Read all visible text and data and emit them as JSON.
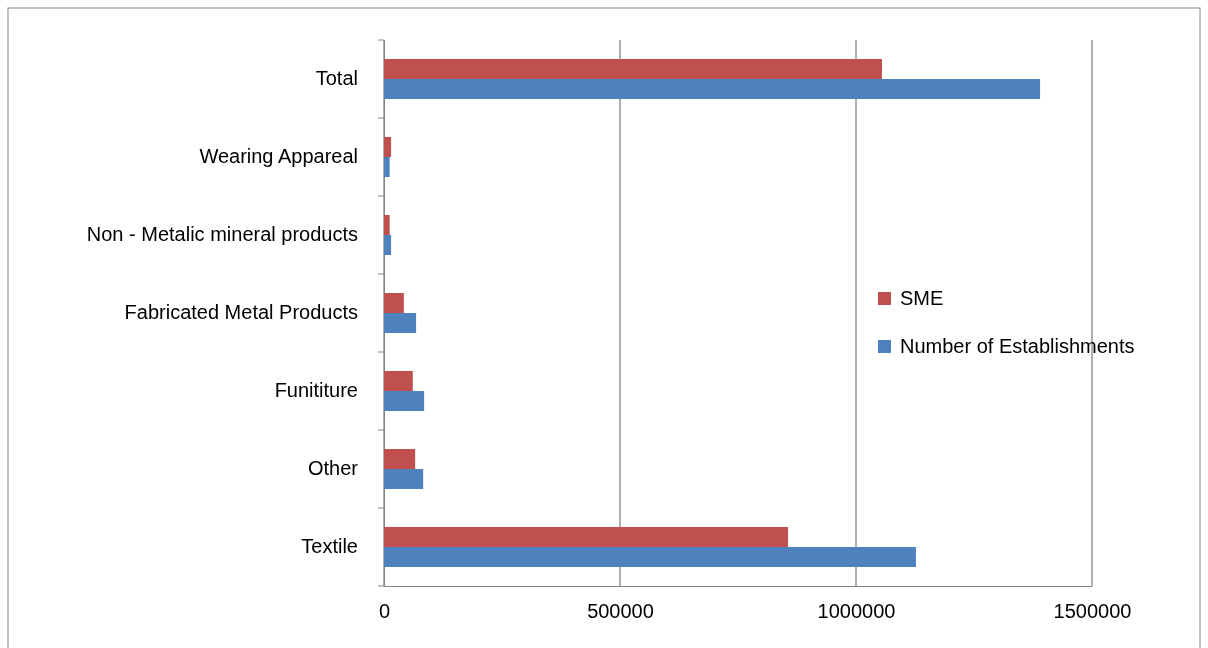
{
  "chart_data": {
    "type": "bar",
    "orientation": "horizontal",
    "categories": [
      "Total",
      "Wearing Appareal",
      "Non - Metalic mineral products",
      "Fabricated Metal Products",
      "Funititure",
      "Other",
      "Textile"
    ],
    "series": [
      {
        "name": "SME",
        "color": "#c0504d",
        "values": [
          1055000,
          15000,
          12000,
          42000,
          61000,
          66000,
          856000
        ]
      },
      {
        "name": "Number of Establishments",
        "color": "#4f81bd",
        "values": [
          1390000,
          12000,
          15000,
          68000,
          85000,
          83000,
          1127000
        ]
      }
    ],
    "xlim": [
      0,
      1500000
    ],
    "xticks": [
      0,
      500000,
      1000000,
      1500000
    ],
    "grid": "x",
    "legend": "right"
  }
}
